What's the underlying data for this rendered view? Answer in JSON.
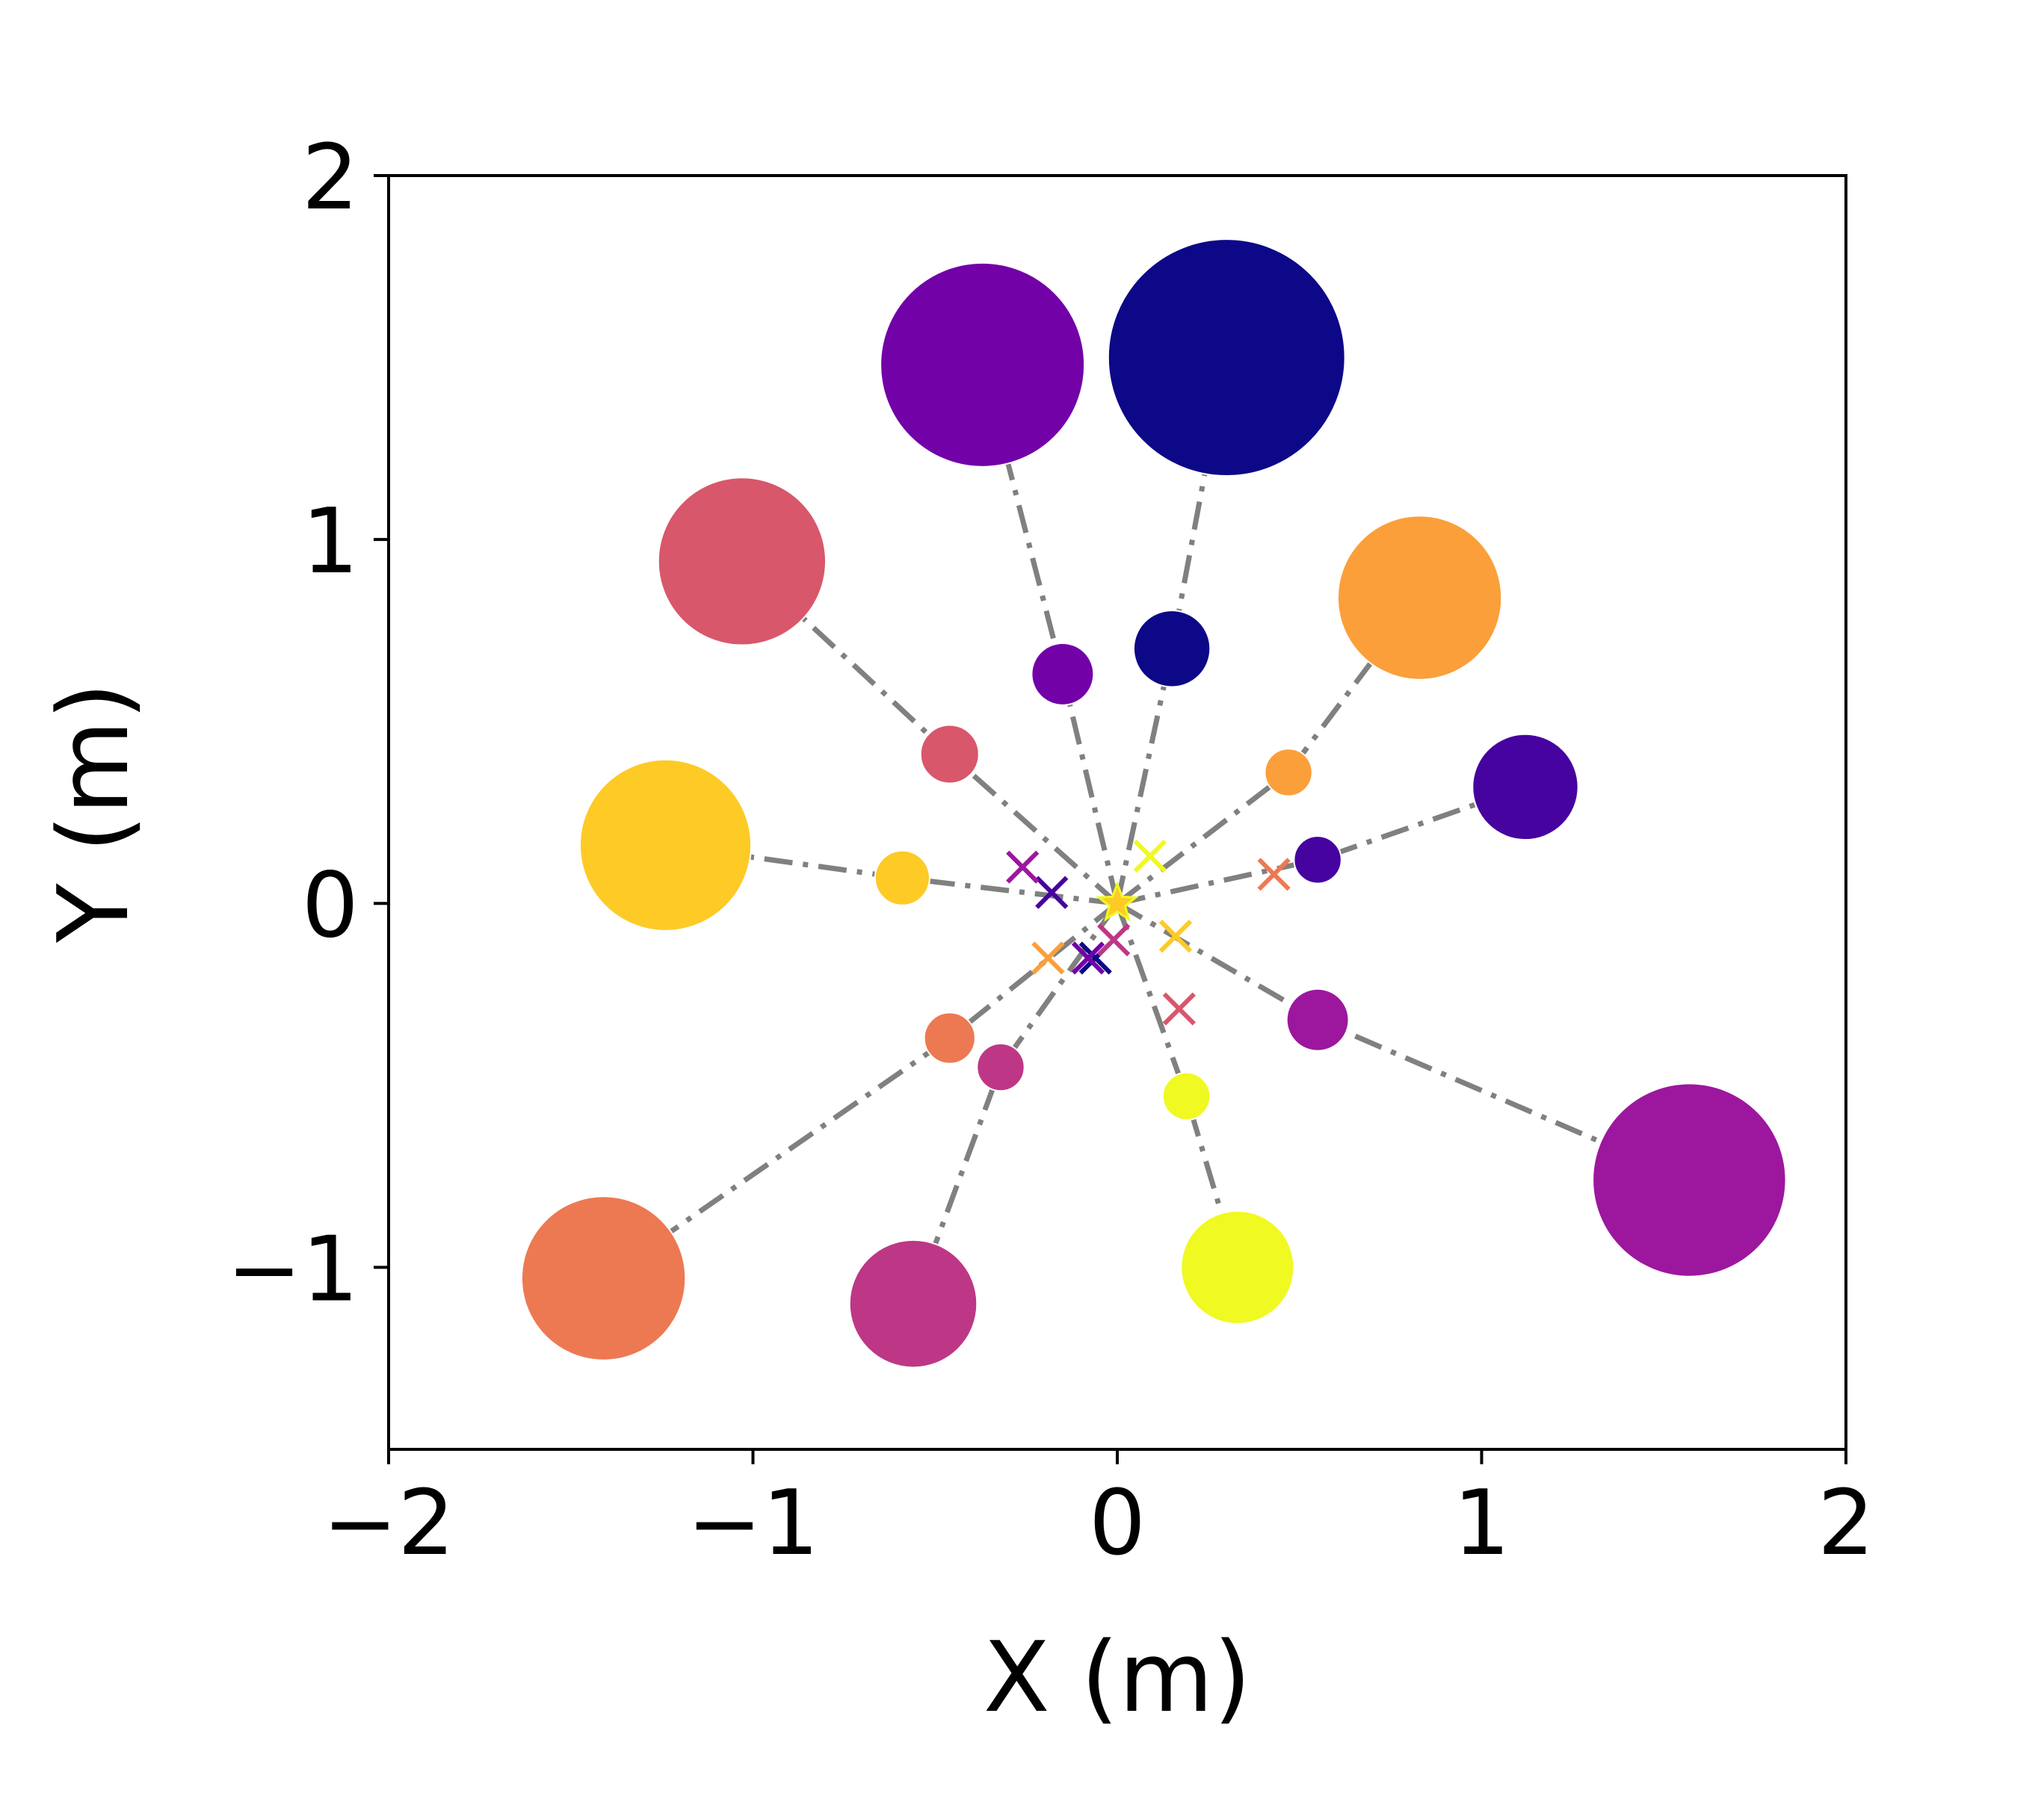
{
  "chart_data": {
    "type": "scatter",
    "title": "",
    "xlabel": "X (m)",
    "ylabel": "Y (m)",
    "xlim": [
      -2,
      2
    ],
    "ylim": [
      -1.5,
      2
    ],
    "x_ticks": [
      -2,
      -1,
      0,
      1,
      2
    ],
    "y_ticks": [
      -1,
      0,
      1,
      2
    ],
    "x_tick_labels": [
      "−2",
      "−1",
      "0",
      "1",
      "2"
    ],
    "y_tick_labels": [
      "−1",
      "0",
      "1",
      "2"
    ],
    "grid": false,
    "legend": "none",
    "center": [
      0,
      0
    ],
    "spokes": [
      {
        "color": "#0d0887",
        "inner": [
          0.15,
          0.7
        ],
        "outer": [
          0.3,
          1.5
        ],
        "inner_size": 0.105,
        "outer_size": 0.325,
        "cross": [
          -0.06,
          -0.15
        ]
      },
      {
        "color": "#46039f",
        "inner": [
          0.55,
          0.12
        ],
        "outer": [
          1.12,
          0.32
        ],
        "inner_size": 0.065,
        "outer_size": 0.145,
        "cross": [
          -0.18,
          0.03
        ]
      },
      {
        "color": "#7201a8",
        "inner": [
          -0.15,
          0.63
        ],
        "outer": [
          -0.37,
          1.48
        ],
        "inner_size": 0.085,
        "outer_size": 0.28,
        "cross": [
          -0.08,
          -0.15
        ]
      },
      {
        "color": "#9c179e",
        "inner": [
          0.55,
          -0.32
        ],
        "outer": [
          1.57,
          -0.76
        ],
        "inner_size": 0.085,
        "outer_size": 0.265,
        "cross": [
          -0.26,
          0.1
        ]
      },
      {
        "color": "#bd3786",
        "inner": [
          -0.32,
          -0.45
        ],
        "outer": [
          -0.56,
          -1.1
        ],
        "inner_size": 0.065,
        "outer_size": 0.175,
        "cross": [
          -0.01,
          -0.1
        ]
      },
      {
        "color": "#d8576b",
        "inner": [
          -0.46,
          0.41
        ],
        "outer": [
          -1.03,
          0.94
        ],
        "inner_size": 0.08,
        "outer_size": 0.23,
        "cross": [
          0.17,
          -0.29
        ]
      },
      {
        "color": "#ed7953",
        "inner": [
          -0.46,
          -0.37
        ],
        "outer": [
          -1.41,
          -1.03
        ],
        "inner_size": 0.07,
        "outer_size": 0.225,
        "cross": [
          0.43,
          0.08
        ]
      },
      {
        "color": "#fb9f3a",
        "inner": [
          0.47,
          0.36
        ],
        "outer": [
          0.83,
          0.84
        ],
        "inner_size": 0.065,
        "outer_size": 0.225,
        "cross": [
          -0.19,
          -0.15
        ]
      },
      {
        "color": "#fdca26",
        "inner": [
          -0.59,
          0.07
        ],
        "outer": [
          -1.24,
          0.16
        ],
        "inner_size": 0.075,
        "outer_size": 0.235,
        "cross": [
          0.16,
          -0.09
        ]
      },
      {
        "color": "#f0f921",
        "inner": [
          0.19,
          -0.53
        ],
        "outer": [
          0.33,
          -1.0
        ],
        "inner_size": 0.065,
        "outer_size": 0.155,
        "cross": [
          0.09,
          0.13
        ]
      }
    ]
  }
}
